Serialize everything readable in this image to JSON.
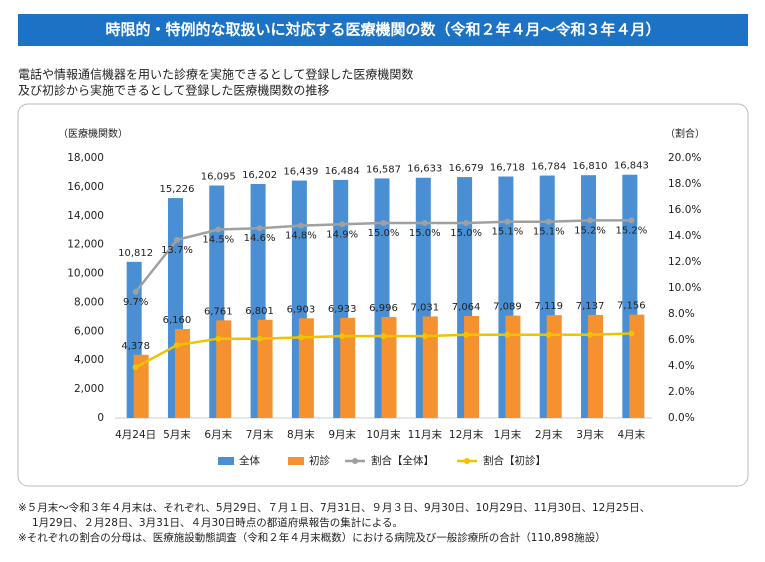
{
  "header": {
    "title": "時限的・特例的な取扱いに対応する医療機関の数（令和２年４月～令和３年４月）"
  },
  "description": [
    "電話や情報通信機器を用いた診療を実施できるとして登録した医療機関数",
    "及び初診から実施できるとして登録した医療機関数の推移"
  ],
  "chart_data": {
    "type": "bar",
    "y_label": "（医療機関数）",
    "y2_label": "（割合）",
    "categories": [
      "4月24日",
      "5月末",
      "6月末",
      "7月末",
      "8月末",
      "9月末",
      "10月末",
      "11月末",
      "12月末",
      "1月末",
      "2月末",
      "3月末",
      "4月末"
    ],
    "series": [
      {
        "name": "全体",
        "type": "bar",
        "color": "#4a8fd3",
        "values": [
          10812,
          15226,
          16095,
          16202,
          16439,
          16484,
          16587,
          16633,
          16679,
          16718,
          16784,
          16810,
          16843
        ],
        "value_labels": [
          "10,812",
          "15,226",
          "16,095",
          "16,202",
          "16,439",
          "16,484",
          "16,587",
          "16,633",
          "16,679",
          "16,718",
          "16,784",
          "16,810",
          "16,843"
        ]
      },
      {
        "name": "初診",
        "type": "bar",
        "color": "#f5922f",
        "values": [
          4378,
          6160,
          6761,
          6801,
          6903,
          6933,
          6996,
          7031,
          7064,
          7089,
          7119,
          7137,
          7156
        ],
        "value_labels": [
          "4,378",
          "6,160",
          "6,761",
          "6,801",
          "6,903",
          "6,933",
          "6,996",
          "7,031",
          "7,064",
          "7,089",
          "7,119",
          "7,137",
          "7,156"
        ]
      },
      {
        "name": "割合【全体】",
        "type": "line",
        "axis": "y2",
        "color": "#a0a0a0",
        "values": [
          9.7,
          13.7,
          14.5,
          14.6,
          14.8,
          14.9,
          15.0,
          15.0,
          15.0,
          15.1,
          15.1,
          15.2,
          15.2
        ],
        "value_labels": [
          "9.7%",
          "13.7%",
          "14.5%",
          "14.6%",
          "14.8%",
          "14.9%",
          "15.0%",
          "15.0%",
          "15.0%",
          "15.1%",
          "15.1%",
          "15.2%",
          "15.2%"
        ]
      },
      {
        "name": "割合【初診】",
        "type": "line",
        "axis": "y2",
        "color": "#f2c200",
        "values": [
          3.9,
          5.6,
          6.1,
          6.1,
          6.2,
          6.3,
          6.3,
          6.3,
          6.4,
          6.4,
          6.4,
          6.4,
          6.5
        ]
      }
    ],
    "ylim": [
      0,
      18000
    ],
    "yticks": [
      0,
      {
        "value": 2000,
        "label": "2,000"
      },
      {
        "value": 4000,
        "label": "4,000"
      },
      {
        "value": 6000,
        "label": "6,000"
      },
      {
        "value": 8000,
        "label": "8,000"
      },
      {
        "value": 10000,
        "label": "10,000"
      },
      {
        "value": 12000,
        "label": "12,000"
      },
      {
        "value": 14000,
        "label": "14,000"
      },
      {
        "value": 16000,
        "label": "16,000"
      },
      {
        "value": 18000,
        "label": "18,000"
      }
    ],
    "y2lim": [
      0,
      20
    ],
    "y2ticks": [
      {
        "value": 0,
        "label": "0.0%"
      },
      {
        "value": 2,
        "label": "2.0%"
      },
      {
        "value": 4,
        "label": "4.0%"
      },
      {
        "value": 6,
        "label": "6.0%"
      },
      {
        "value": 8,
        "label": "8.0%"
      },
      {
        "value": 10,
        "label": "10.0%"
      },
      {
        "value": 12,
        "label": "12.0%"
      },
      {
        "value": 14,
        "label": "14.0%"
      },
      {
        "value": 16,
        "label": "16.0%"
      },
      {
        "value": 18,
        "label": "18.0%"
      },
      {
        "value": 20,
        "label": "20.0%"
      }
    ],
    "legend": "bottom"
  },
  "notes": [
    "※５月末～令和３年４月末は、それぞれ、5月29日、７月１日、7月31日、９月３日、9月30日、10月29日、11月30日、12月25日、",
    "1月29日、２月28日、3月31日、４月30日時点の都道府県報告の集計による。",
    "※それぞれの割合の分母は、医療施設動態調査（令和２年４月末概数）における病院及び一般診療所の合計（110,898施設）"
  ]
}
